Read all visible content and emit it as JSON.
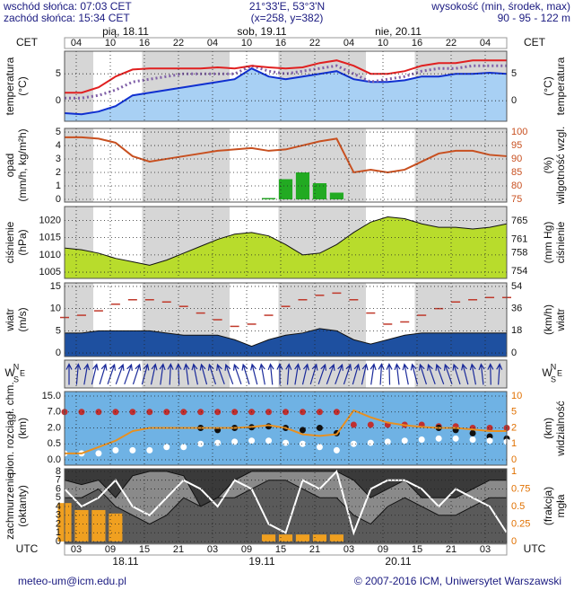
{
  "header": {
    "sunrise": "wschód słońca: 07:03 CET",
    "sunset": "zachód słońca: 15:34 CET",
    "coords": "21°33'E, 53°3'N",
    "grid": "(x=258, y=382)",
    "height_title": "wysokość (min, środek, max)",
    "heights": "90 - 95 - 122 m"
  },
  "time_axis": {
    "top_label": "CET",
    "cet_ticks": [
      "04",
      "10",
      "16",
      "22",
      "04",
      "10",
      "16",
      "22",
      "04",
      "10",
      "16",
      "22",
      "04"
    ],
    "cet_days": [
      "pią, 18.11",
      "sob, 19.11",
      "nie, 20.11"
    ],
    "bottom_label": "UTC",
    "utc_ticks": [
      "03",
      "09",
      "15",
      "21",
      "03",
      "09",
      "15",
      "21",
      "03",
      "09",
      "15",
      "21",
      "03"
    ],
    "utc_days": [
      "18.11",
      "19.11",
      "20.11"
    ]
  },
  "footer": {
    "contact": "meteo-um@icm.edu.pl",
    "copyright": "© 2007-2016 ICM, Uniwersytet Warszawski"
  },
  "compass": {
    "north": "N",
    "west": "W",
    "east": "E",
    "south": "S"
  },
  "chart_data": [
    {
      "type": "line",
      "ylabel": [
        "temperatura",
        "(°C)"
      ],
      "y2label": [
        "(°C)",
        "temperatura"
      ],
      "ylim": [
        -3.8,
        9.2
      ],
      "yticks": [
        0,
        5
      ],
      "y2lim": [
        -3.8,
        9.2
      ],
      "y2ticks": [
        0,
        5
      ],
      "series": [
        {
          "mark": "line",
          "color": "#1030d0",
          "fill": "#a8d0f4",
          "values": [
            -2.3,
            -2.5,
            -2,
            -1,
            1,
            1.5,
            2,
            2.5,
            3,
            3.5,
            4,
            6,
            4.5,
            4,
            4.5,
            5,
            5.5,
            4,
            3.5,
            3.5,
            3.8,
            4.5,
            4.5,
            5,
            5,
            5.2,
            5
          ]
        },
        {
          "mark": "line",
          "color": "#8060a8",
          "dash": true,
          "values": [
            0.5,
            0.5,
            1,
            2,
            3.5,
            4,
            4.5,
            5,
            5,
            5,
            5,
            6.5,
            5.5,
            5,
            5.5,
            6,
            6.5,
            5,
            3.5,
            4,
            4.5,
            5.5,
            6,
            6,
            6.5,
            6.5,
            6.5
          ]
        },
        {
          "mark": "line",
          "color": "#e02020",
          "values": [
            1.5,
            1.5,
            2.5,
            4.5,
            5.8,
            6,
            6,
            6,
            6,
            6.2,
            6,
            6.5,
            6.2,
            6,
            6.2,
            7,
            7.5,
            6.5,
            5,
            5,
            5.5,
            6.5,
            7,
            7,
            7.5,
            7.5,
            7.5
          ]
        }
      ]
    },
    {
      "type": "bar",
      "ylabel": [
        "opad",
        "(mm/h, kg/m²h)"
      ],
      "y2label": [
        "(%)",
        "wilgotność wzgl."
      ],
      "ylim": [
        -0.2,
        5.27
      ],
      "yticks": [
        0,
        1,
        2,
        3,
        4,
        5
      ],
      "y2lim": [
        74,
        101.3
      ],
      "y2ticks": [
        75,
        80,
        85,
        90,
        95,
        100
      ],
      "y2color": "#c85020",
      "series": [
        {
          "mark": "bar",
          "color": "#22aa22",
          "values": [
            0,
            0,
            0,
            0,
            0,
            0,
            0,
            0,
            0,
            0,
            0,
            0,
            0.1,
            1.5,
            2,
            1.2,
            0.5,
            0,
            0,
            0,
            0,
            0,
            0,
            0,
            0,
            0,
            0
          ]
        },
        {
          "mark": "line",
          "axis": "y2",
          "color": "#c85020",
          "values": [
            98,
            98,
            97.5,
            96,
            91,
            89,
            90,
            91,
            92,
            93,
            93.5,
            94,
            93,
            93.5,
            95,
            96.5,
            97.5,
            85,
            86,
            85,
            86,
            89,
            92,
            93,
            93,
            91.5,
            91
          ]
        }
      ]
    },
    {
      "type": "area",
      "ylabel": [
        "ciśnienie",
        "(hPa)"
      ],
      "y2label": [
        "(mm Hg)",
        "ciśnienie"
      ],
      "ylim": [
        1003.2,
        1024
      ],
      "yticks": [
        1005,
        1010,
        1015,
        1020
      ],
      "y2lim": [
        752.5,
        768.1
      ],
      "y2ticks": [
        754,
        758,
        761,
        765
      ],
      "series": [
        {
          "mark": "area",
          "color": "#b8dc2c",
          "values": [
            1012,
            1011.5,
            1010.5,
            1009,
            1008,
            1007,
            1008.5,
            1010.5,
            1012.5,
            1014.5,
            1016,
            1016.5,
            1015.5,
            1013,
            1010,
            1010.5,
            1013,
            1016.5,
            1019.5,
            1021,
            1020.5,
            1019,
            1018,
            1018,
            1017.5,
            1018,
            1019
          ]
        }
      ]
    },
    {
      "type": "area",
      "ylabel": [
        "wiatr",
        "(m/s)"
      ],
      "y2label": [
        "(km/h)",
        "wiatr"
      ],
      "ylim": [
        -0.8,
        15.8
      ],
      "yticks": [
        0,
        5,
        10,
        15
      ],
      "y2lim": [
        -2.9,
        56.9
      ],
      "y2ticks": [
        0,
        18,
        36,
        54
      ],
      "series": [
        {
          "mark": "area",
          "color": "#1e50a0",
          "values": [
            4.5,
            4.5,
            5,
            5,
            5,
            5,
            4.5,
            4,
            4,
            4,
            3,
            1.5,
            3,
            4,
            4.5,
            5.5,
            5,
            3,
            2,
            3,
            4,
            4.5,
            4.5,
            4.5,
            4.5,
            4.5,
            4.5
          ]
        },
        {
          "mark": "dashes",
          "color": "#c0392b",
          "values": [
            8,
            8.5,
            9.5,
            11,
            12,
            12,
            11.5,
            10.5,
            9,
            7.5,
            6,
            6.5,
            8.5,
            10.5,
            12,
            13,
            13.5,
            12,
            9,
            6.5,
            7,
            8.5,
            10,
            11.5,
            12,
            12.5,
            12.5
          ]
        }
      ]
    },
    {
      "type": "arrows"
    },
    {
      "type": "scatter",
      "ylabel": [
        "pion. rozciągł. chm.",
        "(km)"
      ],
      "y2label": [
        "(km)",
        "widzialność"
      ],
      "yticks": [
        {
          "value": 0,
          "label": "0.0"
        },
        {
          "value": 0.5,
          "label": "0.5"
        },
        {
          "value": 2,
          "label": "2.0"
        },
        {
          "value": 7,
          "label": "7.0"
        },
        {
          "value": 15,
          "label": "15.0"
        }
      ],
      "y2ticks": [
        0,
        1,
        2,
        5,
        10
      ],
      "y2color": "#e07000",
      "series": [
        {
          "mark": "dots",
          "color": "#c03030",
          "values": [
            7,
            7,
            7,
            7,
            7,
            7,
            7,
            7,
            7,
            7,
            7,
            7,
            7,
            7,
            7,
            7,
            7,
            3,
            3,
            3,
            3,
            3,
            2.5,
            2.5,
            2,
            2,
            2
          ]
        },
        {
          "mark": "dots",
          "color": "#101010",
          "values": [
            null,
            null,
            null,
            null,
            null,
            null,
            null,
            null,
            2,
            1.8,
            2,
            2.2,
            2.5,
            2,
            1.8,
            2,
            1.5,
            null,
            null,
            null,
            null,
            null,
            2,
            1.8,
            1.5,
            1.2,
            1
          ]
        },
        {
          "mark": "dots",
          "color": "#ffffff",
          "values": [
            0.2,
            0.2,
            0.2,
            0.3,
            0.3,
            0.3,
            0.4,
            0.4,
            0.5,
            0.6,
            0.7,
            0.8,
            0.8,
            0.6,
            0.5,
            0.4,
            0.3,
            0.5,
            0.6,
            0.7,
            0.8,
            0.9,
            1,
            1,
            0.9,
            0.8,
            0.7
          ]
        },
        {
          "mark": "line",
          "axis": "y2",
          "color": "#e89020",
          "values": [
            0.4,
            0.4,
            0.8,
            1.2,
            1.8,
            2,
            2,
            2,
            2,
            2,
            2,
            2.2,
            2.5,
            2,
            1.6,
            1.5,
            1.6,
            5.5,
            4,
            3,
            2.5,
            2.2,
            2,
            2,
            1.9,
            1.8,
            1.8
          ]
        }
      ]
    },
    {
      "type": "area",
      "ylabel": [
        "zachmurzenie",
        "(oktanty)"
      ],
      "y2label": [
        "(frakcja)",
        "mgła"
      ],
      "ylim": [
        -0.2,
        8.3
      ],
      "yticks": [
        0,
        1,
        2,
        3,
        4,
        5,
        6,
        7,
        8
      ],
      "y2lim": [
        -0.026,
        1.04
      ],
      "y2ticks": [
        0,
        0.25,
        0.5,
        0.75,
        1
      ],
      "y2color": "#e07000",
      "series": [
        {
          "mark": "area",
          "color": "#8a8a8a",
          "values": [
            7,
            6.5,
            7,
            5,
            7.5,
            8,
            8,
            7.5,
            4,
            5,
            7,
            8,
            8,
            8,
            8,
            8,
            8,
            7,
            5,
            6,
            7,
            5,
            5,
            5,
            6,
            7,
            7
          ]
        },
        {
          "mark": "area",
          "color": "#5a5a5a",
          "values": [
            5,
            5,
            6,
            4,
            3,
            2,
            3,
            5,
            4,
            5,
            5,
            6,
            7,
            7,
            6,
            5,
            5,
            3,
            2,
            4,
            5,
            4,
            3,
            3,
            4,
            5,
            5
          ]
        },
        {
          "mark": "bar",
          "axis": "y2",
          "color": "#f0a020",
          "values": [
            0.55,
            0.45,
            0.45,
            0.4,
            0,
            0,
            0,
            0,
            0,
            0,
            0,
            0,
            0.1,
            0.1,
            0.1,
            0.1,
            0.1,
            0,
            0,
            0,
            0,
            0,
            0,
            0,
            0,
            0,
            0
          ]
        },
        {
          "mark": "line",
          "color": "#ffffff",
          "values": [
            6,
            4,
            5,
            7,
            4,
            3,
            5,
            7,
            6,
            4,
            7,
            6,
            2,
            1,
            7,
            6,
            8,
            1,
            6,
            7,
            7,
            6,
            4,
            6,
            5,
            4,
            1
          ]
        }
      ]
    }
  ]
}
